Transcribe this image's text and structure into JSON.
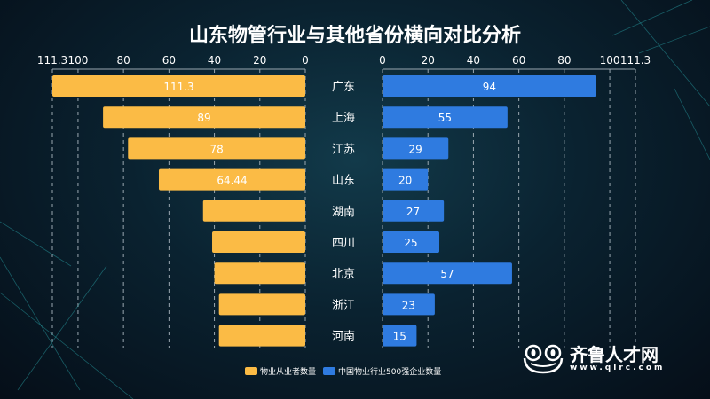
{
  "chart_data": {
    "type": "bar",
    "title": "山东物管行业与其他省份横向对比分析",
    "categories": [
      "广东",
      "上海",
      "江苏",
      "山东",
      "湖南",
      "四川",
      "北京",
      "浙江",
      "河南"
    ],
    "series": [
      {
        "name": "物业从业者数量",
        "values": [
          111.3,
          89,
          78,
          64.44,
          45,
          41,
          40,
          38,
          38
        ],
        "labels": [
          "111.3",
          "89",
          "78",
          "64.44",
          "",
          "",
          "",
          "",
          ""
        ],
        "color": "#fbbb45",
        "direction": "left"
      },
      {
        "name": "中国物业行业500强企业数量",
        "values": [
          94,
          55,
          29,
          20,
          27,
          25,
          57,
          23,
          15
        ],
        "labels": [
          "94",
          "55",
          "29",
          "20",
          "27",
          "25",
          "57",
          "23",
          "15"
        ],
        "color": "#2f7be0",
        "direction": "right"
      }
    ],
    "xlim": [
      0,
      111.3
    ],
    "ticks": [
      "0",
      "20",
      "40",
      "60",
      "80",
      "100",
      "111.3"
    ],
    "tick_values": [
      0,
      20,
      40,
      60,
      80,
      100,
      111.3
    ],
    "grid": true,
    "legend_position": "bottom"
  },
  "logo": {
    "brand": "齐鲁人才网",
    "url": "www.qlrc.com",
    "mark": "®"
  }
}
